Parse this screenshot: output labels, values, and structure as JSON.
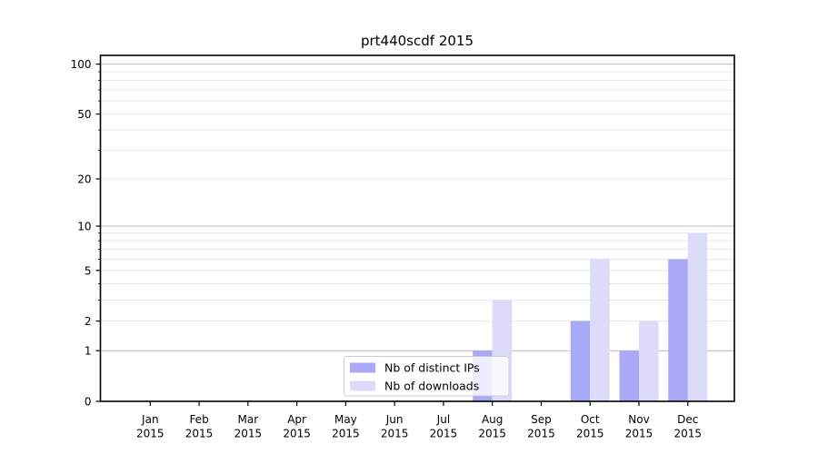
{
  "figure": {
    "background": "#ffffff"
  },
  "chart_data": {
    "type": "bar",
    "title": "prt440scdf 2015",
    "categories": [
      "Jan",
      "Feb",
      "Mar",
      "Apr",
      "May",
      "Jun",
      "Jul",
      "Aug",
      "Sep",
      "Oct",
      "Nov",
      "Dec"
    ],
    "x_tick_second_line": "2015",
    "series": [
      {
        "name": "Nb of distinct IPs",
        "color": "#a9a9f7",
        "values": [
          0,
          0,
          0,
          0,
          0,
          0,
          0,
          1,
          0,
          2,
          1,
          6
        ]
      },
      {
        "name": "Nb of downloads",
        "color": "#dcdcfa",
        "values": [
          0,
          0,
          0,
          0,
          0,
          0,
          0,
          3,
          0,
          6,
          2,
          9
        ]
      }
    ],
    "y_axis": {
      "scale": "log10(1+x)",
      "tick_labels": [
        "0",
        "1",
        "2",
        "5",
        "10",
        "20",
        "50",
        "100"
      ],
      "tick_values": [
        0,
        1,
        2,
        5,
        10,
        20,
        50,
        100
      ],
      "major_gridlines": [
        1,
        10,
        100
      ],
      "minor_gridlines": [
        2,
        3,
        4,
        5,
        6,
        7,
        8,
        9,
        20,
        30,
        40,
        50,
        60,
        70,
        80,
        90
      ],
      "ylim": [
        0,
        112
      ]
    },
    "legend": {
      "entries": [
        "Nb of distinct IPs",
        "Nb of downloads"
      ],
      "position": "inside-bottom-center"
    },
    "grid": true
  },
  "colors": {
    "grid_minor": "#e7e7e7",
    "grid_major": "#bdbdbd",
    "axis": "#000000",
    "text": "#000000",
    "legend_border": "#cccccc",
    "legend_bg": "rgba(255,255,255,0.8)"
  }
}
